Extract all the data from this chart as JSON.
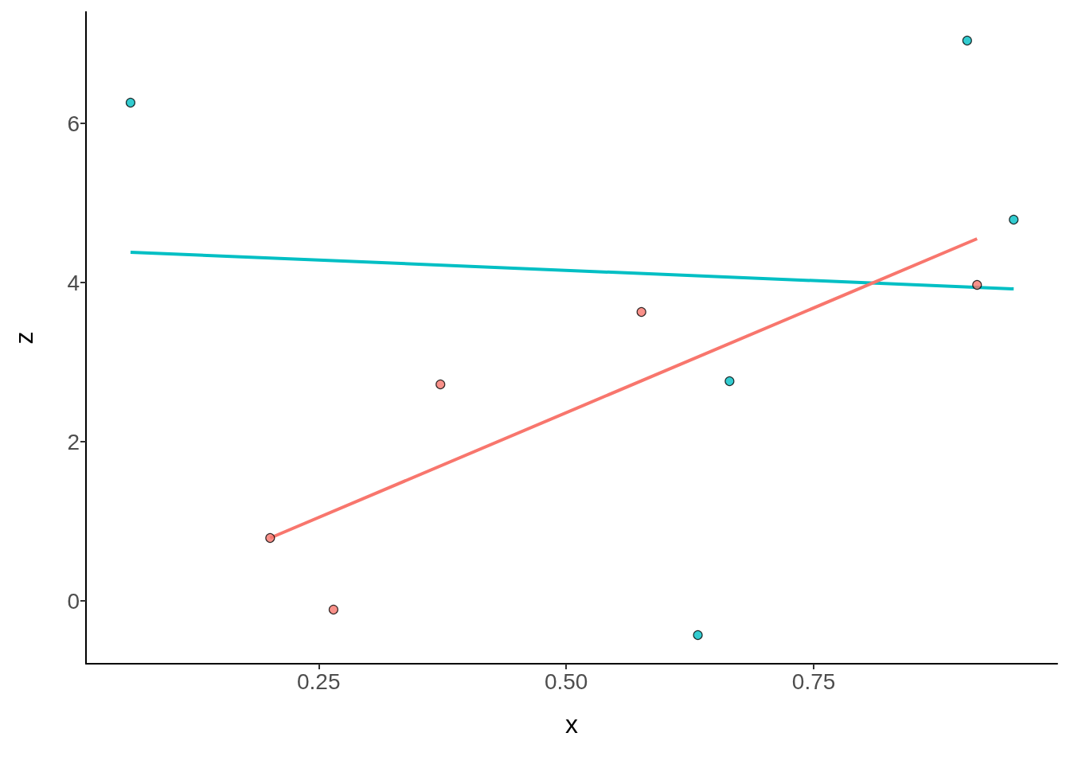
{
  "chart_data": {
    "type": "scatter",
    "xlabel": "x",
    "ylabel": "z",
    "xlim": [
      0.015,
      0.996
    ],
    "ylim": [
      -0.79,
      7.4
    ],
    "xticks": [
      {
        "value": 0.25,
        "label": "0.25"
      },
      {
        "value": 0.5,
        "label": "0.50"
      },
      {
        "value": 0.75,
        "label": "0.75"
      }
    ],
    "yticks": [
      0,
      2,
      4,
      6
    ],
    "grid": false,
    "series": [
      {
        "marker": "circle",
        "color": "#00bfc4",
        "x": [
          0.06,
          0.905,
          0.952,
          0.665,
          0.633
        ],
        "values": [
          6.26,
          7.04,
          4.79,
          2.76,
          -0.43
        ]
      },
      {
        "marker": "circle",
        "color": "#f8766d",
        "x": [
          0.201,
          0.265,
          0.373,
          0.576,
          0.915
        ],
        "values": [
          0.79,
          -0.11,
          2.72,
          3.63,
          3.97
        ]
      },
      {
        "type": "line",
        "marker": "none",
        "color": "#00bfc4",
        "x": [
          0.06,
          0.952
        ],
        "values": [
          4.38,
          3.92
        ]
      },
      {
        "type": "line",
        "marker": "none",
        "color": "#f8766d",
        "x": [
          0.201,
          0.915
        ],
        "values": [
          0.79,
          4.55
        ]
      }
    ]
  }
}
